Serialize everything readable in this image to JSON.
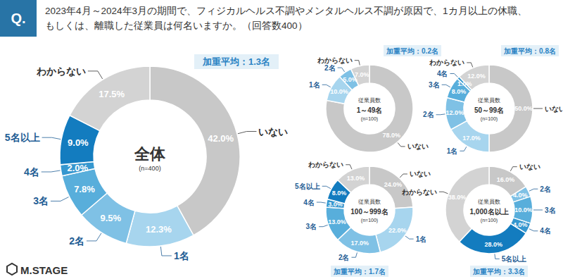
{
  "header": {
    "badge": "Q.",
    "title_lines": [
      "2023年4月～2024年3月の期間で、フィジカルヘルス不調やメンタルヘルス不調が原因で、1カ月以上の休職、",
      "もしくは、離職した従業員は何名いますか。（回答数400）"
    ]
  },
  "logo": "M.STAGE",
  "chart_data": [
    {
      "type": "donut",
      "center_labels": [
        "全体",
        "(n=400)"
      ],
      "annotation": "加重平均：1.3名",
      "categories": [
        "いない",
        "1名",
        "2名",
        "3名",
        "4名",
        "5名以上",
        "わからない"
      ],
      "values": [
        42.0,
        12.3,
        9.5,
        7.8,
        2.0,
        9.0,
        17.5
      ],
      "value_labels": [
        "42.0%",
        "12.3%",
        "9.5%",
        "7.8%",
        "2.0%",
        "9.0%",
        "17.5%"
      ],
      "colors": [
        "#c8c8c8",
        "#a7d5ee",
        "#7fc1e5",
        "#58aedb",
        "#3597cf",
        "#137cbf",
        "#d3d3d3"
      ],
      "data_labels": true
    },
    {
      "type": "donut",
      "center_labels": [
        "従業員数",
        "1～49名",
        "(n=100)"
      ],
      "annotation": "加重平均：0.2名",
      "categories": [
        "いない",
        "1名",
        "2名",
        "わからない"
      ],
      "values": [
        78.0,
        10.0,
        5.0,
        7.0
      ],
      "value_labels": [
        "78.0%",
        "10.0%",
        "5.0%",
        "7.0%"
      ],
      "colors": [
        "#c8c8c8",
        "#a7d5ee",
        "#7fc1e5",
        "#d3d3d3"
      ],
      "data_labels": true
    },
    {
      "type": "donut",
      "center_labels": [
        "従業員数",
        "50～99名",
        "(n=100)"
      ],
      "annotation": "加重平均：0.8名",
      "categories": [
        "いない",
        "1名",
        "2名",
        "3名",
        "4名",
        "わからない"
      ],
      "values": [
        50.0,
        17.0,
        12.0,
        8.0,
        1.0,
        12.0
      ],
      "value_labels": [
        "50.0%",
        "17.0%",
        "12.0%",
        "8.0%",
        "1.0%",
        "12.0%"
      ],
      "colors": [
        "#c8c8c8",
        "#a7d5ee",
        "#7fc1e5",
        "#58aedb",
        "#3597cf",
        "#d3d3d3"
      ],
      "data_labels": true
    },
    {
      "type": "donut",
      "center_labels": [
        "従業員数",
        "100～999名",
        "(n=100)"
      ],
      "annotation": "加重平均：1.7名",
      "categories": [
        "いない",
        "1名",
        "2名",
        "3名",
        "4名",
        "5名以上",
        "わからない"
      ],
      "values": [
        24.0,
        22.0,
        17.0,
        13.0,
        3.0,
        8.0,
        13.0
      ],
      "value_labels": [
        "24.0%",
        "22.0%",
        "17.0%",
        "13.0%",
        "3.0%",
        "8.0%",
        "13.0%"
      ],
      "colors": [
        "#c8c8c8",
        "#a7d5ee",
        "#7fc1e5",
        "#58aedb",
        "#3597cf",
        "#137cbf",
        "#d3d3d3"
      ],
      "data_labels": true
    },
    {
      "type": "donut",
      "center_labels": [
        "従業員数",
        "1,000名以上",
        "(n=100)"
      ],
      "annotation": "加重平均：3.3名",
      "categories": [
        "いない",
        "2名",
        "3名",
        "4名",
        "5名以上",
        "わからない"
      ],
      "values": [
        16.0,
        4.0,
        10.0,
        4.0,
        28.0,
        38.0
      ],
      "value_labels": [
        "16.0%",
        "4.0%",
        "10.0%",
        "4.0%",
        "28.0%",
        "38.0%"
      ],
      "colors": [
        "#c8c8c8",
        "#7fc1e5",
        "#58aedb",
        "#3597cf",
        "#137cbf",
        "#d3d3d3"
      ],
      "data_labels": true
    }
  ]
}
